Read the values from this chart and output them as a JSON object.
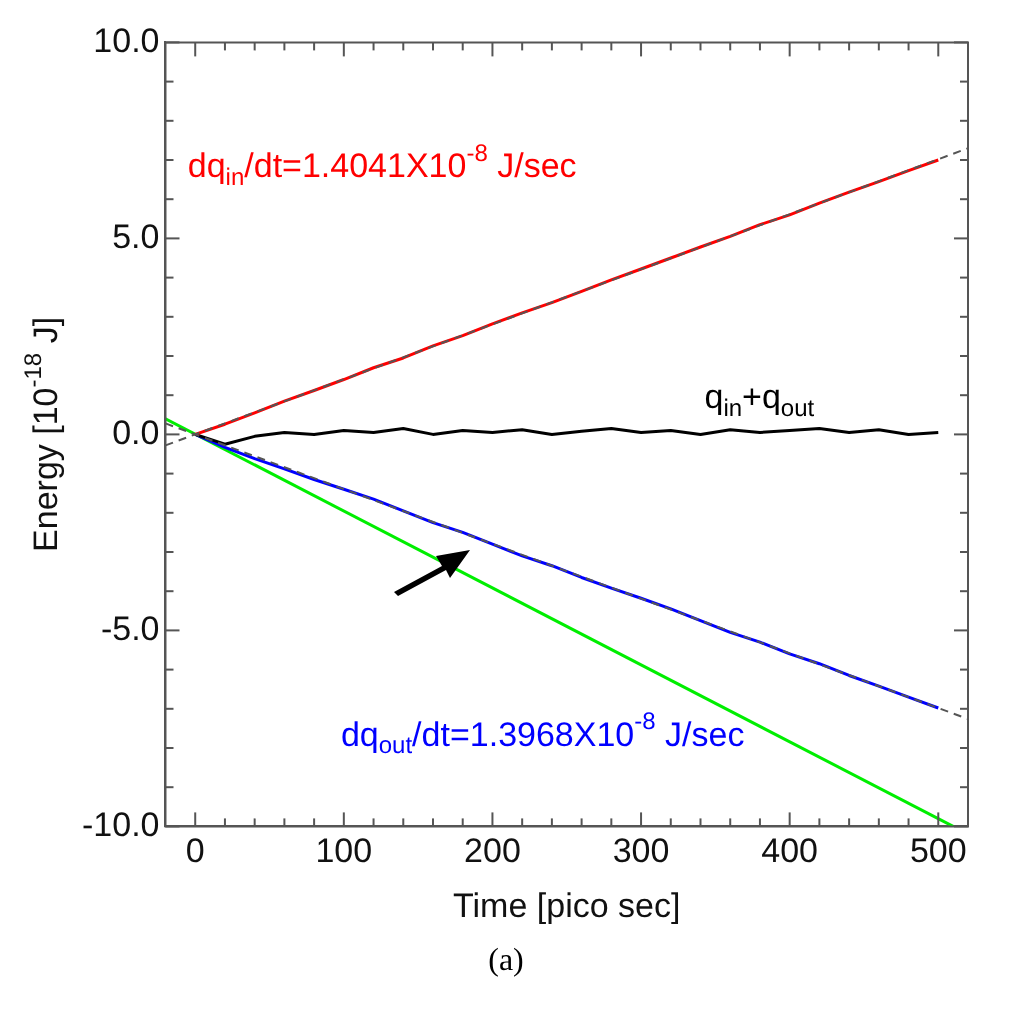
{
  "chart_data": {
    "type": "line",
    "xlabel": "Time [pico sec]",
    "ylabel": "Energy [10$^{-18}$ J]",
    "x": [
      0,
      20,
      40,
      60,
      80,
      100,
      120,
      140,
      160,
      180,
      200,
      220,
      240,
      260,
      280,
      300,
      320,
      340,
      360,
      380,
      400,
      420,
      440,
      460,
      480,
      500
    ],
    "series": [
      {
        "name": "dq$_{in}$/dt=1.4041X10$^{-8}$ J/sec",
        "color": "#ff0000",
        "values": [
          0,
          0.26,
          0.55,
          0.85,
          1.12,
          1.4,
          1.7,
          1.95,
          2.26,
          2.52,
          2.82,
          3.1,
          3.36,
          3.65,
          3.94,
          4.22,
          4.5,
          4.78,
          5.05,
          5.35,
          5.6,
          5.9,
          6.18,
          6.45,
          6.73,
          7.0
        ]
      },
      {
        "name": "q$_{in}$+q$_{out}$",
        "color": "#000000",
        "values": [
          0,
          -0.25,
          -0.05,
          0.05,
          0.0,
          0.1,
          0.05,
          0.15,
          0.0,
          0.1,
          0.05,
          0.12,
          0.0,
          0.08,
          0.15,
          0.05,
          0.1,
          0.0,
          0.12,
          0.05,
          0.1,
          0.15,
          0.05,
          0.12,
          0.0,
          0.05
        ]
      },
      {
        "name": "dq$_{out}$/dt=1.3968X10$^{-8}$ J/sec",
        "color": "#0000ff",
        "values": [
          0,
          -0.33,
          -0.62,
          -0.88,
          -1.15,
          -1.4,
          -1.65,
          -1.95,
          -2.25,
          -2.5,
          -2.8,
          -3.1,
          -3.35,
          -3.65,
          -3.92,
          -4.18,
          -4.45,
          -4.75,
          -5.05,
          -5.3,
          -5.6,
          -5.85,
          -6.15,
          -6.42,
          -6.7,
          -6.98
        ]
      },
      {
        "color": "#00ee00",
        "x": [
          -20,
          510
        ],
        "values": [
          0.4,
          -10
        ]
      },
      {
        "color": "#555555",
        "line_style": "dashed",
        "x": [
          -20,
          520
        ],
        "values": [
          -0.28,
          7.3
        ]
      },
      {
        "color": "#555555",
        "line_style": "dashed",
        "x": [
          -20,
          520
        ],
        "values": [
          0.28,
          -7.26
        ]
      }
    ],
    "xlim": [
      -20,
      520
    ],
    "xticks": [
      0,
      {
        "value": 20,
        "label": null
      },
      {
        "value": 40,
        "label": null
      },
      {
        "value": 60,
        "label": null
      },
      {
        "value": 80,
        "label": null
      },
      100,
      {
        "value": 120,
        "label": null
      },
      {
        "value": 140,
        "label": null
      },
      {
        "value": 160,
        "label": null
      },
      {
        "value": 180,
        "label": null
      },
      200,
      {
        "value": 220,
        "label": null
      },
      {
        "value": 240,
        "label": null
      },
      {
        "value": 260,
        "label": null
      },
      {
        "value": 280,
        "label": null
      },
      300,
      {
        "value": 320,
        "label": null
      },
      {
        "value": 340,
        "label": null
      },
      {
        "value": 360,
        "label": null
      },
      {
        "value": 380,
        "label": null
      },
      400,
      {
        "value": 420,
        "label": null
      },
      {
        "value": 440,
        "label": null
      },
      {
        "value": 460,
        "label": null
      },
      {
        "value": 480,
        "label": null
      },
      500
    ],
    "ylim": [
      -10,
      10
    ],
    "yticks": [
      {
        "value": -10,
        "label": "-10.0"
      },
      {
        "value": -9,
        "label": null
      },
      {
        "value": -8,
        "label": null
      },
      {
        "value": -7,
        "label": null
      },
      {
        "value": -6,
        "label": null
      },
      {
        "value": -5,
        "label": "-5.0"
      },
      {
        "value": -4,
        "label": null
      },
      {
        "value": -3,
        "label": null
      },
      {
        "value": -2,
        "label": null
      },
      {
        "value": -1,
        "label": null
      },
      {
        "value": 0,
        "label": "0.0"
      },
      {
        "value": 1,
        "label": null
      },
      {
        "value": 2,
        "label": null
      },
      {
        "value": 3,
        "label": null
      },
      {
        "value": 4,
        "label": null
      },
      {
        "value": 5,
        "label": "5.0"
      },
      {
        "value": 6,
        "label": null
      },
      {
        "value": 7,
        "label": null
      },
      {
        "value": 8,
        "label": null
      },
      {
        "value": 9,
        "label": null
      },
      {
        "value": 10,
        "label": "10.0"
      }
    ],
    "annotations": [
      "(a)"
    ],
    "marker": "none",
    "grid": false,
    "legend": false
  }
}
